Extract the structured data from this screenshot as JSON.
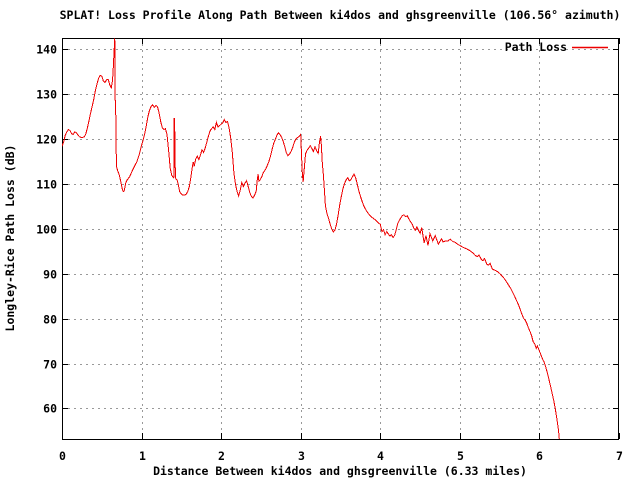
{
  "page": {
    "background": "#ffffff"
  },
  "colors": {
    "line_red": "#ee0000",
    "grid_grey": "#999999",
    "axis_black": "#000000",
    "background": "#ffffff"
  },
  "chart_data": {
    "type": "line",
    "title": "SPLAT! Loss Profile Along Path Between ki4dos and ghsgreenville (106.56° azimuth)",
    "xlabel": "Distance Between ki4dos and ghsgreenville (6.33 miles)",
    "ylabel": "Longley-Rice Path Loss (dB)",
    "xlim": [
      0,
      7
    ],
    "ylim": [
      53.2,
      142.5
    ],
    "x_ticks": [
      0,
      1,
      2,
      3,
      4,
      5,
      6,
      7
    ],
    "y_ticks": [
      60,
      70,
      80,
      90,
      100,
      110,
      120,
      130,
      140
    ],
    "grid": true,
    "grid_style": "dashed",
    "legend": {
      "position": "top-right",
      "entries": [
        {
          "label": "Path Loss",
          "color": "#ee0000"
        }
      ]
    },
    "series": [
      {
        "name": "Path Loss",
        "color": "#ee0000",
        "points": [
          [
            0.0,
            118.4
          ],
          [
            0.02,
            119.3
          ],
          [
            0.04,
            120.8
          ],
          [
            0.06,
            121.6
          ],
          [
            0.08,
            122.1
          ],
          [
            0.1,
            121.9
          ],
          [
            0.12,
            121.2
          ],
          [
            0.14,
            121.0
          ],
          [
            0.16,
            121.6
          ],
          [
            0.18,
            121.4
          ],
          [
            0.2,
            120.9
          ],
          [
            0.22,
            120.5
          ],
          [
            0.25,
            120.3
          ],
          [
            0.28,
            120.5
          ],
          [
            0.3,
            121.2
          ],
          [
            0.32,
            122.6
          ],
          [
            0.34,
            124.2
          ],
          [
            0.36,
            125.8
          ],
          [
            0.38,
            127.3
          ],
          [
            0.4,
            128.9
          ],
          [
            0.42,
            130.8
          ],
          [
            0.44,
            132.3
          ],
          [
            0.46,
            133.5
          ],
          [
            0.48,
            134.2
          ],
          [
            0.5,
            134.0
          ],
          [
            0.52,
            132.9
          ],
          [
            0.54,
            132.6
          ],
          [
            0.56,
            133.2
          ],
          [
            0.58,
            133.3
          ],
          [
            0.6,
            132.1
          ],
          [
            0.62,
            131.4
          ],
          [
            0.635,
            133.0
          ],
          [
            0.645,
            136.0
          ],
          [
            0.655,
            139.5
          ],
          [
            0.662,
            142.4
          ],
          [
            0.667,
            139.0
          ],
          [
            0.67,
            125.6
          ],
          [
            0.676,
            125.3
          ],
          [
            0.68,
            118.0
          ],
          [
            0.686,
            113.8
          ],
          [
            0.7,
            112.9
          ],
          [
            0.72,
            112.0
          ],
          [
            0.735,
            110.8
          ],
          [
            0.75,
            109.5
          ],
          [
            0.76,
            108.7
          ],
          [
            0.77,
            108.3
          ],
          [
            0.78,
            108.4
          ],
          [
            0.79,
            109.2
          ],
          [
            0.8,
            110.2
          ],
          [
            0.82,
            110.9
          ],
          [
            0.85,
            111.6
          ],
          [
            0.88,
            112.8
          ],
          [
            0.91,
            113.9
          ],
          [
            0.94,
            114.9
          ],
          [
            0.97,
            116.5
          ],
          [
            1.0,
            118.6
          ],
          [
            1.02,
            119.8
          ],
          [
            1.04,
            121.3
          ],
          [
            1.06,
            123.0
          ],
          [
            1.08,
            125.0
          ],
          [
            1.1,
            126.4
          ],
          [
            1.12,
            127.3
          ],
          [
            1.14,
            127.6
          ],
          [
            1.16,
            127.1
          ],
          [
            1.18,
            127.5
          ],
          [
            1.2,
            127.2
          ],
          [
            1.22,
            125.8
          ],
          [
            1.24,
            123.9
          ],
          [
            1.26,
            122.5
          ],
          [
            1.28,
            122.1
          ],
          [
            1.3,
            122.3
          ],
          [
            1.32,
            121.0
          ],
          [
            1.34,
            117.5
          ],
          [
            1.36,
            113.5
          ],
          [
            1.38,
            111.9
          ],
          [
            1.4,
            111.4
          ],
          [
            1.405,
            111.5
          ],
          [
            1.41,
            124.7
          ],
          [
            1.415,
            124.2
          ],
          [
            1.425,
            111.3
          ],
          [
            1.44,
            111.0
          ],
          [
            1.45,
            110.7
          ],
          [
            1.465,
            109.5
          ],
          [
            1.48,
            108.2
          ],
          [
            1.5,
            107.8
          ],
          [
            1.52,
            107.5
          ],
          [
            1.54,
            107.5
          ],
          [
            1.56,
            107.7
          ],
          [
            1.58,
            108.3
          ],
          [
            1.6,
            109.4
          ],
          [
            1.62,
            111.5
          ],
          [
            1.64,
            114.0
          ],
          [
            1.65,
            114.9
          ],
          [
            1.66,
            113.9
          ],
          [
            1.68,
            115.5
          ],
          [
            1.7,
            116.2
          ],
          [
            1.72,
            115.4
          ],
          [
            1.74,
            116.5
          ],
          [
            1.76,
            117.6
          ],
          [
            1.78,
            117.0
          ],
          [
            1.8,
            118.0
          ],
          [
            1.82,
            119.3
          ],
          [
            1.84,
            120.6
          ],
          [
            1.86,
            121.8
          ],
          [
            1.88,
            122.3
          ],
          [
            1.9,
            122.7
          ],
          [
            1.92,
            122.1
          ],
          [
            1.94,
            123.7
          ],
          [
            1.96,
            122.7
          ],
          [
            1.98,
            123.0
          ],
          [
            2.0,
            123.3
          ],
          [
            2.02,
            123.6
          ],
          [
            2.04,
            124.3
          ],
          [
            2.06,
            123.7
          ],
          [
            2.08,
            123.9
          ],
          [
            2.1,
            122.5
          ],
          [
            2.12,
            120.2
          ],
          [
            2.14,
            117.0
          ],
          [
            2.16,
            112.5
          ],
          [
            2.18,
            109.9
          ],
          [
            2.2,
            108.3
          ],
          [
            2.22,
            107.3
          ],
          [
            2.24,
            108.6
          ],
          [
            2.26,
            110.3
          ],
          [
            2.28,
            109.4
          ],
          [
            2.3,
            110.2
          ],
          [
            2.32,
            110.7
          ],
          [
            2.34,
            109.4
          ],
          [
            2.36,
            108.1
          ],
          [
            2.38,
            107.2
          ],
          [
            2.4,
            106.9
          ],
          [
            2.42,
            107.5
          ],
          [
            2.44,
            108.4
          ],
          [
            2.455,
            111.0
          ],
          [
            2.465,
            112.2
          ],
          [
            2.475,
            110.6
          ],
          [
            2.49,
            110.9
          ],
          [
            2.51,
            111.6
          ],
          [
            2.53,
            112.5
          ],
          [
            2.56,
            113.3
          ],
          [
            2.58,
            114.1
          ],
          [
            2.6,
            115.0
          ],
          [
            2.62,
            116.2
          ],
          [
            2.64,
            117.7
          ],
          [
            2.66,
            119.0
          ],
          [
            2.68,
            119.9
          ],
          [
            2.7,
            120.8
          ],
          [
            2.72,
            121.4
          ],
          [
            2.74,
            121.0
          ],
          [
            2.76,
            120.4
          ],
          [
            2.78,
            119.5
          ],
          [
            2.8,
            118.3
          ],
          [
            2.82,
            116.9
          ],
          [
            2.84,
            116.3
          ],
          [
            2.86,
            116.7
          ],
          [
            2.88,
            117.3
          ],
          [
            2.9,
            118.2
          ],
          [
            2.92,
            119.3
          ],
          [
            2.94,
            120.0
          ],
          [
            2.96,
            120.3
          ],
          [
            2.98,
            120.6
          ],
          [
            3.0,
            121.0
          ],
          [
            3.01,
            116.5
          ],
          [
            3.02,
            112.5
          ],
          [
            3.03,
            110.4
          ],
          [
            3.05,
            114.5
          ],
          [
            3.06,
            116.7
          ],
          [
            3.08,
            117.5
          ],
          [
            3.1,
            118.0
          ],
          [
            3.12,
            118.5
          ],
          [
            3.14,
            117.9
          ],
          [
            3.16,
            117.2
          ],
          [
            3.18,
            118.3
          ],
          [
            3.2,
            117.4
          ],
          [
            3.22,
            116.8
          ],
          [
            3.235,
            119.2
          ],
          [
            3.25,
            120.6
          ],
          [
            3.26,
            118.5
          ],
          [
            3.27,
            115.0
          ],
          [
            3.285,
            112.0
          ],
          [
            3.3,
            108.0
          ],
          [
            3.31,
            105.1
          ],
          [
            3.33,
            103.4
          ],
          [
            3.35,
            102.3
          ],
          [
            3.37,
            101.0
          ],
          [
            3.39,
            100.0
          ],
          [
            3.41,
            99.3
          ],
          [
            3.43,
            99.7
          ],
          [
            3.45,
            101.0
          ],
          [
            3.47,
            103.0
          ],
          [
            3.49,
            105.3
          ],
          [
            3.51,
            107.2
          ],
          [
            3.53,
            108.9
          ],
          [
            3.55,
            110.1
          ],
          [
            3.57,
            110.9
          ],
          [
            3.59,
            111.4
          ],
          [
            3.61,
            110.7
          ],
          [
            3.63,
            110.9
          ],
          [
            3.65,
            111.6
          ],
          [
            3.67,
            112.2
          ],
          [
            3.69,
            111.4
          ],
          [
            3.71,
            110.0
          ],
          [
            3.73,
            108.5
          ],
          [
            3.75,
            107.3
          ],
          [
            3.77,
            106.2
          ],
          [
            3.79,
            105.2
          ],
          [
            3.81,
            104.5
          ],
          [
            3.84,
            103.6
          ],
          [
            3.87,
            103.0
          ],
          [
            3.9,
            102.5
          ],
          [
            3.93,
            102.1
          ],
          [
            3.96,
            101.6
          ],
          [
            4.0,
            101.0
          ],
          [
            4.02,
            99.4
          ],
          [
            4.04,
            99.8
          ],
          [
            4.06,
            98.7
          ],
          [
            4.08,
            99.4
          ],
          [
            4.1,
            98.9
          ],
          [
            4.12,
            98.4
          ],
          [
            4.14,
            98.7
          ],
          [
            4.16,
            98.1
          ],
          [
            4.18,
            98.5
          ],
          [
            4.2,
            99.8
          ],
          [
            4.22,
            101.2
          ],
          [
            4.24,
            101.9
          ],
          [
            4.26,
            102.5
          ],
          [
            4.28,
            103.0
          ],
          [
            4.3,
            103.1
          ],
          [
            4.32,
            102.7
          ],
          [
            4.34,
            102.9
          ],
          [
            4.36,
            102.2
          ],
          [
            4.38,
            101.6
          ],
          [
            4.4,
            101.1
          ],
          [
            4.42,
            100.2
          ],
          [
            4.44,
            99.7
          ],
          [
            4.46,
            100.4
          ],
          [
            4.48,
            99.7
          ],
          [
            4.5,
            99.0
          ],
          [
            4.52,
            100.3
          ],
          [
            4.55,
            96.9
          ],
          [
            4.575,
            98.5
          ],
          [
            4.6,
            96.3
          ],
          [
            4.625,
            98.9
          ],
          [
            4.66,
            97.3
          ],
          [
            4.69,
            98.5
          ],
          [
            4.73,
            96.6
          ],
          [
            4.77,
            97.8
          ],
          [
            4.79,
            97.1
          ],
          [
            4.82,
            97.3
          ],
          [
            4.85,
            97.3
          ],
          [
            4.88,
            97.7
          ],
          [
            4.91,
            97.2
          ],
          [
            4.94,
            97.0
          ],
          [
            4.97,
            96.6
          ],
          [
            5.0,
            96.3
          ],
          [
            5.04,
            95.9
          ],
          [
            5.08,
            95.6
          ],
          [
            5.12,
            95.2
          ],
          [
            5.16,
            94.7
          ],
          [
            5.19,
            94.1
          ],
          [
            5.22,
            93.8
          ],
          [
            5.24,
            94.2
          ],
          [
            5.27,
            93.2
          ],
          [
            5.29,
            92.9
          ],
          [
            5.31,
            93.4
          ],
          [
            5.34,
            92.1
          ],
          [
            5.36,
            91.9
          ],
          [
            5.38,
            92.3
          ],
          [
            5.41,
            91.0
          ],
          [
            5.44,
            90.8
          ],
          [
            5.47,
            90.5
          ],
          [
            5.5,
            90.1
          ],
          [
            5.53,
            89.5
          ],
          [
            5.56,
            88.9
          ],
          [
            5.6,
            87.8
          ],
          [
            5.64,
            86.7
          ],
          [
            5.68,
            85.3
          ],
          [
            5.71,
            84.1
          ],
          [
            5.74,
            83.0
          ],
          [
            5.76,
            82.0
          ],
          [
            5.78,
            81.0
          ],
          [
            5.8,
            80.1
          ],
          [
            5.82,
            79.7
          ],
          [
            5.84,
            79.0
          ],
          [
            5.86,
            78.0
          ],
          [
            5.88,
            77.2
          ],
          [
            5.9,
            76.3
          ],
          [
            5.92,
            74.9
          ],
          [
            5.94,
            74.4
          ],
          [
            5.96,
            73.4
          ],
          [
            5.975,
            73.9
          ],
          [
            6.0,
            72.8
          ],
          [
            6.02,
            71.9
          ],
          [
            6.04,
            71.0
          ],
          [
            6.06,
            70.3
          ],
          [
            6.08,
            69.2
          ],
          [
            6.1,
            67.9
          ],
          [
            6.12,
            66.4
          ],
          [
            6.14,
            64.9
          ],
          [
            6.16,
            63.3
          ],
          [
            6.18,
            61.7
          ],
          [
            6.2,
            59.9
          ],
          [
            6.22,
            57.7
          ],
          [
            6.24,
            55.2
          ],
          [
            6.25,
            53.2
          ]
        ]
      }
    ]
  }
}
